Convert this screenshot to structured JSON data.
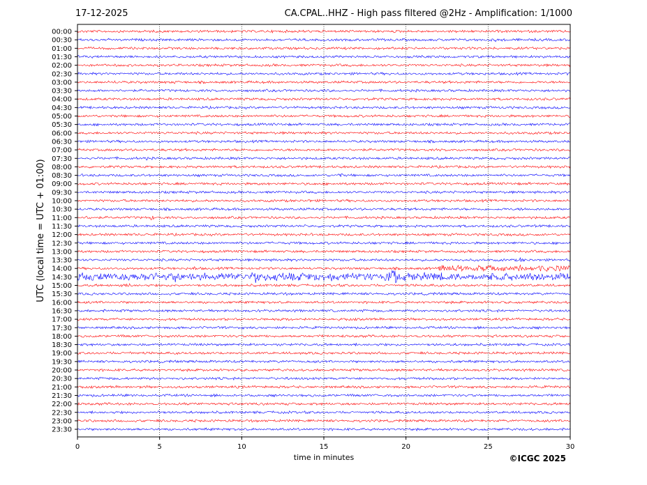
{
  "header": {
    "date": "17-12-2025",
    "title": "CA.CPAL..HHZ - High pass filtered @2Hz - Amplification: 1/1000"
  },
  "footer": {
    "copyright": "©ICGC 2025"
  },
  "chart_data": {
    "type": "helicorder",
    "xlabel": "time in minutes",
    "ylabel": "UTC (local time = UTC + 01:00)",
    "xlim": [
      0,
      30
    ],
    "xticks": [
      0,
      5,
      10,
      15,
      20,
      25,
      30
    ],
    "vertical_gridlines": [
      5,
      10,
      15,
      20,
      25
    ],
    "grid": "dotted vertical",
    "trace_colors": [
      "#ff0000",
      "#0000ff"
    ],
    "rows": [
      "00:00",
      "00:30",
      "01:00",
      "01:30",
      "02:00",
      "02:30",
      "03:00",
      "03:30",
      "04:00",
      "04:30",
      "05:00",
      "05:30",
      "06:00",
      "06:30",
      "07:00",
      "07:30",
      "08:00",
      "08:30",
      "09:00",
      "09:30",
      "10:00",
      "10:30",
      "11:00",
      "11:30",
      "12:00",
      "12:30",
      "13:00",
      "13:30",
      "14:00",
      "14:30",
      "15:00",
      "15:30",
      "16:00",
      "16:30",
      "17:00",
      "17:30",
      "18:00",
      "18:30",
      "19:00",
      "19:30",
      "20:00",
      "20:30",
      "21:00",
      "21:30",
      "22:00",
      "22:30",
      "23:00",
      "23:30"
    ],
    "events": [
      {
        "row": "00:30",
        "minute": 25.5,
        "amplitude": 0.3
      },
      {
        "row": "02:30",
        "minute": 29.6,
        "amplitude": 0.3
      },
      {
        "row": "03:00",
        "minute": 2.2,
        "amplitude": 0.2
      },
      {
        "row": "03:00",
        "minute": 5.9,
        "amplitude": 0.3
      },
      {
        "row": "03:30",
        "minute": 15.0,
        "amplitude": 0.2
      },
      {
        "row": "07:30",
        "minute": 4.1,
        "amplitude": 0.3
      },
      {
        "row": "08:30",
        "minute": 15.9,
        "amplitude": 0.6
      },
      {
        "row": "10:00",
        "minute": 14.0,
        "amplitude": 0.3
      },
      {
        "row": "10:30",
        "minute": 14.8,
        "amplitude": 0.3
      },
      {
        "row": "10:30",
        "minute": 27.0,
        "amplitude": 0.5
      },
      {
        "row": "11:00",
        "minute": 4.5,
        "amplitude": 0.5
      },
      {
        "row": "11:00",
        "minute": 0.6,
        "amplitude": 0.4
      },
      {
        "row": "13:30",
        "minute": 27.0,
        "amplitude": 0.5
      },
      {
        "row": "14:00",
        "minute": 22.0,
        "amplitude": 0.8,
        "duration": 8
      },
      {
        "row": "14:00",
        "minute": 7.1,
        "amplitude": 0.5
      },
      {
        "row": "14:30",
        "minute": 0.0,
        "amplitude": 1.2,
        "duration": 30
      },
      {
        "row": "14:30",
        "minute": 19.2,
        "amplitude": 3.0
      },
      {
        "row": "14:30",
        "minute": 10.8,
        "amplitude": 1.6
      },
      {
        "row": "14:30",
        "minute": 6.0,
        "amplitude": 1.3
      },
      {
        "row": "15:00",
        "minute": 3.1,
        "amplitude": 0.6
      },
      {
        "row": "15:00",
        "minute": 2.6,
        "amplitude": 0.5
      },
      {
        "row": "19:00",
        "minute": 3.2,
        "amplitude": 0.4
      },
      {
        "row": "19:30",
        "minute": 19.5,
        "amplitude": 0.2
      },
      {
        "row": "22:30",
        "minute": 4.9,
        "amplitude": 0.5
      }
    ]
  }
}
